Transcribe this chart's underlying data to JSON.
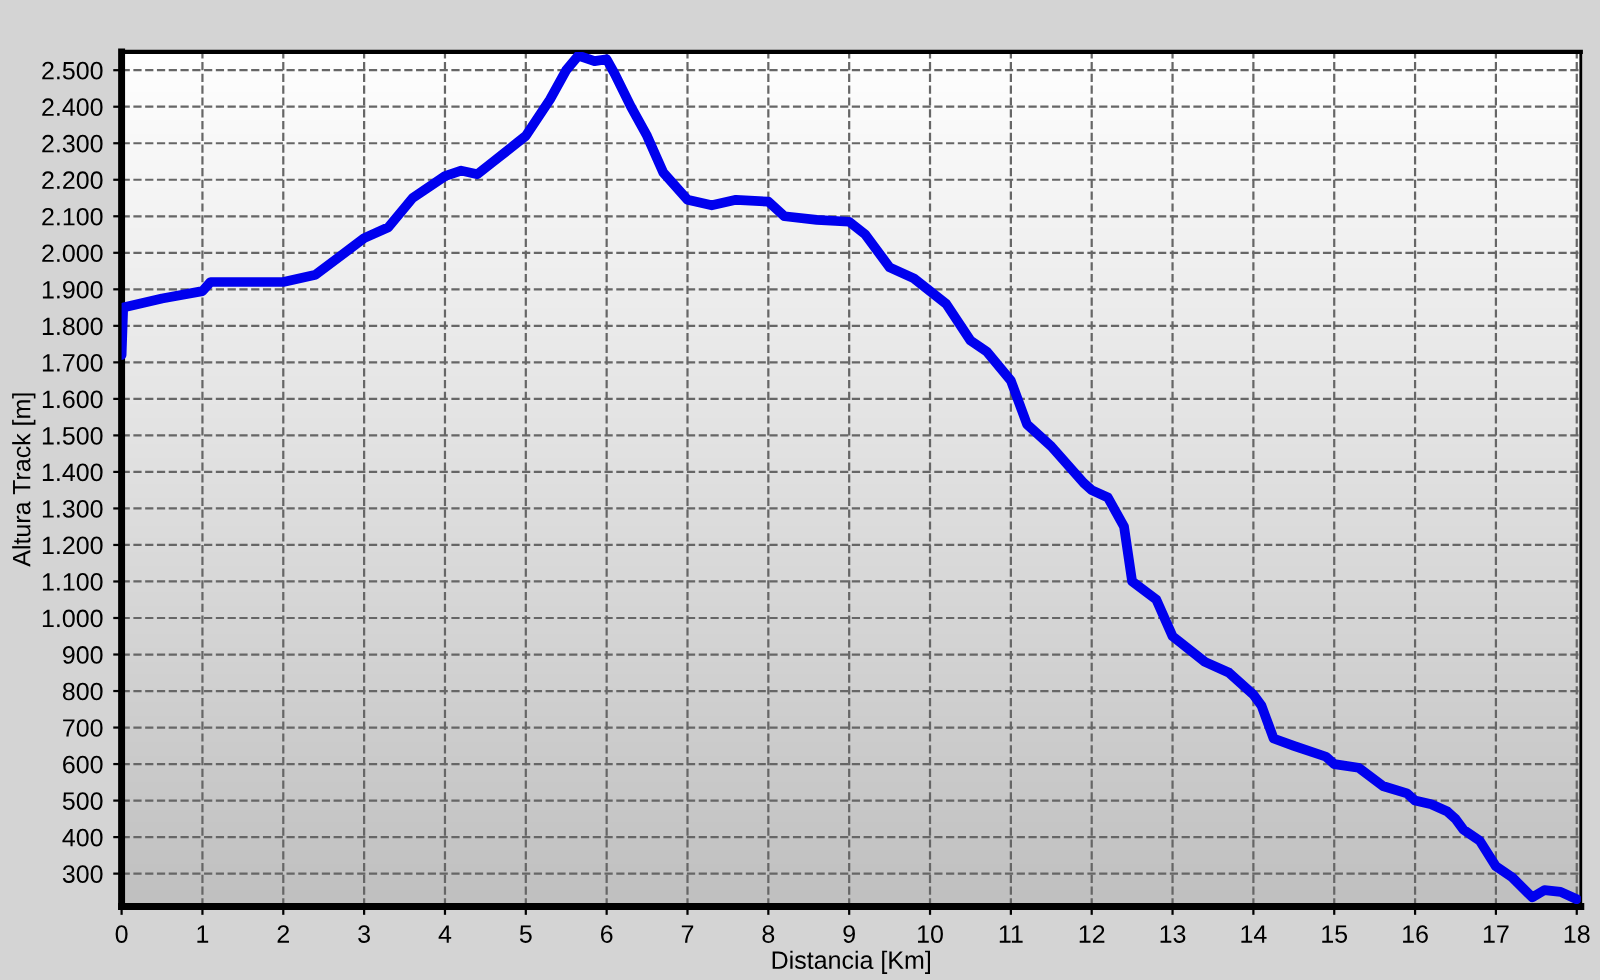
{
  "chart_data": {
    "type": "line",
    "xlabel": "Distancia [Km]",
    "ylabel": "Altura Track [m]",
    "xlim": [
      0,
      18.05
    ],
    "ylim": [
      210,
      2550
    ],
    "xticks": [
      0,
      1,
      2,
      3,
      4,
      5,
      6,
      7,
      8,
      9,
      10,
      11,
      12,
      13,
      14,
      15,
      16,
      17,
      18
    ],
    "yticks": [
      300,
      400,
      500,
      600,
      700,
      800,
      900,
      {
        "value": 1000,
        "label": "1.000"
      },
      {
        "value": 1100,
        "label": "1.100"
      },
      {
        "value": 1200,
        "label": "1.200"
      },
      {
        "value": 1300,
        "label": "1.300"
      },
      {
        "value": 1400,
        "label": "1.400"
      },
      {
        "value": 1500,
        "label": "1.500"
      },
      {
        "value": 1600,
        "label": "1.600"
      },
      {
        "value": 1700,
        "label": "1.700"
      },
      {
        "value": 1800,
        "label": "1.800"
      },
      {
        "value": 1900,
        "label": "1.900"
      },
      {
        "value": 2000,
        "label": "2.000"
      },
      {
        "value": 2100,
        "label": "2.100"
      },
      {
        "value": 2200,
        "label": "2.200"
      },
      {
        "value": 2300,
        "label": "2.300"
      },
      {
        "value": 2400,
        "label": "2.400"
      },
      {
        "value": 2500,
        "label": "2.500"
      }
    ],
    "grid": true,
    "legend": false,
    "marker": "none",
    "line_style": "solid",
    "series": [
      {
        "color": "#0000ee",
        "x": [
          0,
          0.02,
          0.5,
          1.0,
          1.1,
          2.0,
          2.4,
          3.0,
          3.3,
          3.6,
          4.0,
          4.2,
          4.4,
          4.6,
          5.0,
          5.3,
          5.5,
          5.65,
          5.85,
          6.0,
          6.1,
          6.3,
          6.5,
          6.7,
          7.0,
          7.3,
          7.6,
          8.0,
          8.2,
          8.6,
          9.0,
          9.2,
          9.5,
          9.8,
          10.2,
          10.5,
          10.7,
          11.0,
          11.2,
          11.5,
          11.9,
          12.0,
          12.2,
          12.4,
          12.5,
          12.8,
          13.0,
          13.4,
          13.7,
          14.0,
          14.1,
          14.25,
          14.5,
          14.9,
          15.0,
          15.3,
          15.6,
          15.9,
          16.0,
          16.2,
          16.4,
          16.5,
          16.6,
          16.8,
          17.0,
          17.2,
          17.45,
          17.6,
          17.8,
          18.0
        ],
        "values": [
          1720,
          1850,
          1875,
          1895,
          1920,
          1920,
          1940,
          2040,
          2070,
          2150,
          2210,
          2225,
          2215,
          2250,
          2320,
          2420,
          2500,
          2540,
          2525,
          2530,
          2490,
          2400,
          2320,
          2220,
          2145,
          2130,
          2145,
          2140,
          2100,
          2090,
          2085,
          2050,
          1960,
          1930,
          1860,
          1760,
          1730,
          1650,
          1530,
          1470,
          1370,
          1350,
          1330,
          1250,
          1100,
          1050,
          950,
          880,
          850,
          790,
          760,
          670,
          650,
          620,
          600,
          590,
          540,
          520,
          500,
          490,
          470,
          450,
          420,
          390,
          320,
          290,
          235,
          255,
          250,
          230
        ]
      }
    ]
  }
}
